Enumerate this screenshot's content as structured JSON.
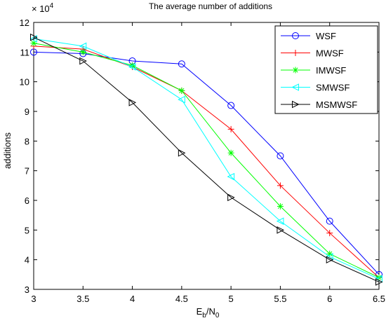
{
  "chart_data": {
    "type": "line",
    "title": "The average number of additions",
    "xlabel": {
      "main": "E",
      "sub1": "b",
      "mid": "/N",
      "sub2": "0"
    },
    "ylabel": "additions",
    "y_multiplier": {
      "base": "× 10",
      "exp": "4"
    },
    "xlim": [
      3,
      6.5
    ],
    "ylim": [
      3,
      12
    ],
    "x_ticks": [
      "3",
      "3.5",
      "4",
      "4.5",
      "5",
      "5.5",
      "6",
      "6.5"
    ],
    "y_ticks": [
      "3",
      "4",
      "5",
      "6",
      "7",
      "8",
      "9",
      "10",
      "11",
      "12"
    ],
    "grid": true,
    "legend_position": "top-right",
    "x": [
      3,
      3.5,
      4,
      4.5,
      5,
      5.5,
      6,
      6.5
    ],
    "series": [
      {
        "name": "WSF",
        "color": "#0000ff",
        "marker": "circle",
        "values": [
          11.0,
          10.95,
          10.7,
          10.6,
          9.2,
          7.5,
          5.3,
          3.5
        ]
      },
      {
        "name": "MWSF",
        "color": "#ff0000",
        "marker": "plus",
        "values": [
          11.2,
          11.1,
          10.5,
          9.7,
          8.4,
          6.5,
          4.9,
          3.4
        ]
      },
      {
        "name": "IMWSF",
        "color": "#00ff00",
        "marker": "asterisk",
        "values": [
          11.3,
          11.0,
          10.55,
          9.7,
          7.6,
          5.8,
          4.2,
          3.4
        ]
      },
      {
        "name": "SMWSF",
        "color": "#00ffff",
        "marker": "triangle-left",
        "values": [
          11.45,
          11.2,
          10.5,
          9.4,
          6.8,
          5.3,
          4.1,
          3.35
        ]
      },
      {
        "name": "MSMWSF",
        "color": "#000000",
        "marker": "triangle-right",
        "values": [
          11.5,
          10.7,
          9.3,
          7.6,
          6.1,
          5.0,
          4.0,
          3.25
        ]
      }
    ]
  }
}
